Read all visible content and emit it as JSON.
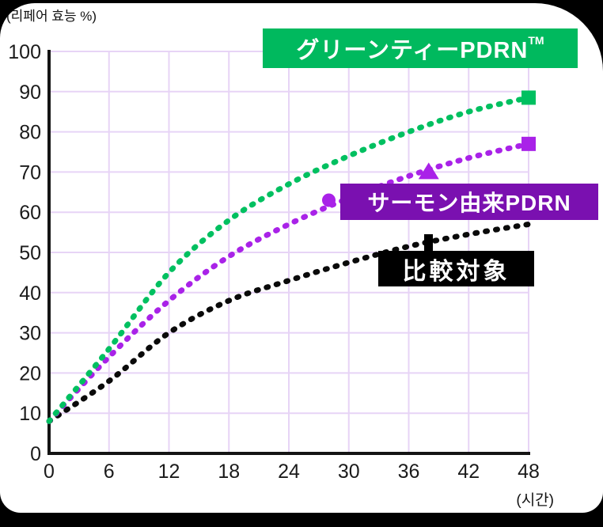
{
  "page": {
    "background_color": "#000000",
    "card_color": "#ffffff"
  },
  "chart_data": {
    "type": "line",
    "title": "",
    "ylabel": "(리페어 효능 %)",
    "xlabel": "(시간)",
    "xlim": [
      0,
      48
    ],
    "ylim": [
      0,
      100
    ],
    "x_ticks": [
      0,
      6,
      12,
      18,
      24,
      30,
      36,
      42,
      48
    ],
    "y_ticks": [
      0,
      10,
      20,
      30,
      40,
      50,
      60,
      70,
      80,
      90,
      100
    ],
    "grid": true,
    "grid_color": "#e7d4f6",
    "axis_color": "#141414",
    "tick_label_color": "#1b1b1b",
    "x": [
      0,
      6,
      12,
      18,
      24,
      30,
      36,
      42,
      48
    ],
    "series": [
      {
        "name": "比較対象",
        "color": "#0a0a0a",
        "line_style": "dotted",
        "values": [
          8,
          18,
          30,
          38,
          43,
          47.5,
          51.5,
          54.5,
          57
        ],
        "markers": []
      },
      {
        "name": "サーモン由来PDRN",
        "color": "#a922e8",
        "line_style": "dotted",
        "values": [
          8,
          24,
          38,
          49,
          57,
          63.5,
          69,
          73.5,
          77
        ],
        "markers": [
          {
            "shape": "circle",
            "x": 28,
            "y": 63
          },
          {
            "shape": "triangle",
            "x": 38,
            "y": 70
          },
          {
            "shape": "square",
            "x": 48,
            "y": 77
          }
        ]
      },
      {
        "name": "グリーンティーPDRN™",
        "color": "#00c060",
        "line_style": "dotted",
        "values": [
          8,
          26,
          45,
          58,
          67,
          74,
          80,
          85,
          88.5
        ],
        "markers": [
          {
            "shape": "square",
            "x": 48,
            "y": 88.5
          }
        ]
      }
    ]
  },
  "labels": {
    "green": {
      "text": "グリーンティーPDRN",
      "sup": "TM",
      "bg": "#00b95e"
    },
    "purple": {
      "text": "サーモン由来PDRN",
      "bg": "#7a10b0"
    },
    "black": {
      "text": "比較対象",
      "bg": "#000000"
    }
  }
}
